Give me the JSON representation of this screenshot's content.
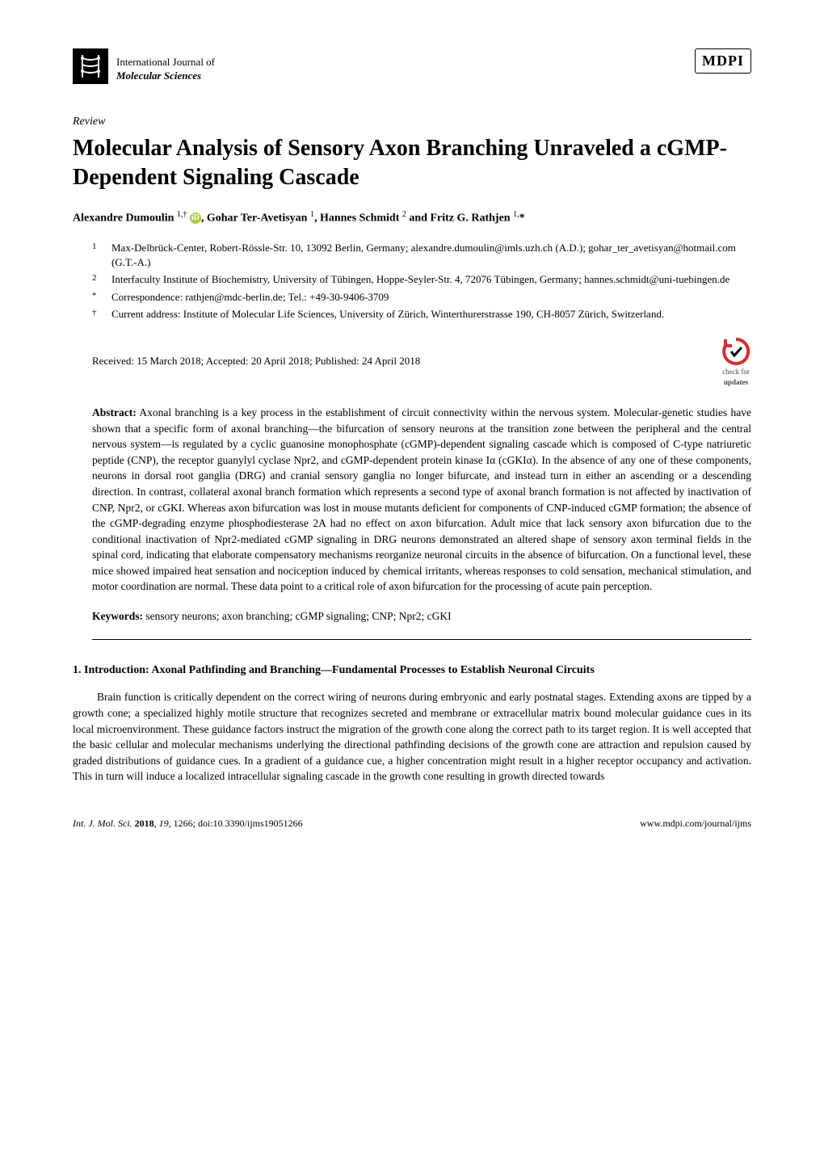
{
  "header": {
    "journal_label": "International Journal of",
    "journal_name": "Molecular Sciences",
    "publisher_logo": "MDPI"
  },
  "article": {
    "type": "Review",
    "title": "Molecular Analysis of Sensory Axon Branching Unraveled a cGMP-Dependent Signaling Cascade",
    "authors_html": "Alexandre Dumoulin <span class='sup'>1,†</span> <span class='orcid'>iD</span>, Gohar Ter-Avetisyan <span class='sup'>1</span>, Hannes Schmidt <span class='sup'>2</span> and Fritz G. Rathjen <span class='sup'>1,</span>*",
    "affiliations": [
      {
        "num": "1",
        "text": "Max-Delbrück-Center, Robert-Rössle-Str. 10, 13092 Berlin, Germany; alexandre.dumoulin@imls.uzh.ch (A.D.); gohar_ter_avetisyan@hotmail.com (G.T.-A.)"
      },
      {
        "num": "2",
        "text": "Interfaculty Institute of Biochemistry, University of Tübingen, Hoppe-Seyler-Str. 4, 72076 Tübingen, Germany; hannes.schmidt@uni-tuebingen.de"
      },
      {
        "num": "*",
        "text": "Correspondence: rathjen@mdc-berlin.de; Tel.: +49-30-9406-3709"
      },
      {
        "num": "†",
        "text": "Current address: Institute of Molecular Life Sciences, University of Zürich, Winterthurerstrasse 190, CH-8057 Zürich, Switzerland."
      }
    ],
    "dates": "Received: 15 March 2018; Accepted: 20 April 2018; Published: 24 April 2018",
    "check_updates_label1": "check for",
    "check_updates_label2": "updates",
    "abstract_label": "Abstract:",
    "abstract": "Axonal branching is a key process in the establishment of circuit connectivity within the nervous system. Molecular-genetic studies have shown that a specific form of axonal branching—the bifurcation of sensory neurons at the transition zone between the peripheral and the central nervous system—is regulated by a cyclic guanosine monophosphate (cGMP)-dependent signaling cascade which is composed of C-type natriuretic peptide (CNP), the receptor guanylyl cyclase Npr2, and cGMP-dependent protein kinase Iα (cGKIα). In the absence of any one of these components, neurons in dorsal root ganglia (DRG) and cranial sensory ganglia no longer bifurcate, and instead turn in either an ascending or a descending direction. In contrast, collateral axonal branch formation which represents a second type of axonal branch formation is not affected by inactivation of CNP, Npr2, or cGKI. Whereas axon bifurcation was lost in mouse mutants deficient for components of CNP-induced cGMP formation; the absence of the cGMP-degrading enzyme phosphodiesterase 2A had no effect on axon bifurcation. Adult mice that lack sensory axon bifurcation due to the conditional inactivation of Npr2-mediated cGMP signaling in DRG neurons demonstrated an altered shape of sensory axon terminal fields in the spinal cord, indicating that elaborate compensatory mechanisms reorganize neuronal circuits in the absence of bifurcation. On a functional level, these mice showed impaired heat sensation and nociception induced by chemical irritants, whereas responses to cold sensation, mechanical stimulation, and motor coordination are normal. These data point to a critical role of axon bifurcation for the processing of acute pain perception.",
    "keywords_label": "Keywords:",
    "keywords": "sensory neurons; axon branching; cGMP signaling; CNP; Npr2; cGKI"
  },
  "sections": {
    "s1_heading": "1. Introduction: Axonal Pathfinding and Branching—Fundamental Processes to Establish Neuronal Circuits",
    "s1_body": "Brain function is critically dependent on the correct wiring of neurons during embryonic and early postnatal stages. Extending axons are tipped by a growth cone; a specialized highly motile structure that recognizes secreted and membrane or extracellular matrix bound molecular guidance cues in its local microenvironment. These guidance factors instruct the migration of the growth cone along the correct path to its target region. It is well accepted that the basic cellular and molecular mechanisms underlying the directional pathfinding decisions of the growth cone are attraction and repulsion caused by graded distributions of guidance cues. In a gradient of a guidance cue, a higher concentration might result in a higher receptor occupancy and activation. This in turn will induce a localized intracellular signaling cascade in the growth cone resulting in growth directed towards"
  },
  "footer": {
    "left_html": "<i>Int. J. Mol. Sci.</i> <b>2018</b>, <i>19</i>, 1266; doi:10.3390/ijms19051266",
    "right": "www.mdpi.com/journal/ijms"
  },
  "colors": {
    "orcid_bg": "#a6ce39",
    "check_ring": "#d32f2f",
    "check_arrow": "#000000"
  }
}
